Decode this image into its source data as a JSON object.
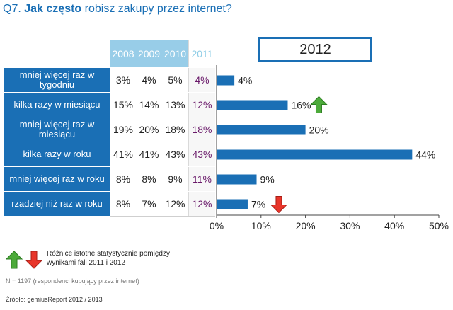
{
  "title": {
    "prefix": "Q7.",
    "bold": "Jak często",
    "rest": "robisz zakupy przez internet?"
  },
  "table": {
    "years": [
      "2008",
      "2009",
      "2010",
      "2011"
    ],
    "rows": [
      {
        "label": "mniej więcej raz w tygodniu",
        "values": [
          "3%",
          "4%",
          "5%",
          "4%"
        ]
      },
      {
        "label": "kilka razy w miesiącu",
        "values": [
          "15%",
          "14%",
          "13%",
          "12%"
        ]
      },
      {
        "label": "mniej więcej raz w miesiącu",
        "values": [
          "19%",
          "20%",
          "18%",
          "18%"
        ]
      },
      {
        "label": "kilka razy w roku",
        "values": [
          "41%",
          "41%",
          "43%",
          "43%"
        ]
      },
      {
        "label": "mniej więcej raz w roku",
        "values": [
          "8%",
          "8%",
          "9%",
          "11%"
        ]
      },
      {
        "label": "rzadziej niż raz w roku",
        "values": [
          "8%",
          "7%",
          "12%",
          "12%"
        ]
      }
    ]
  },
  "chart_data": {
    "type": "bar",
    "orientation": "horizontal",
    "title": "2012",
    "categories": [
      "mniej więcej raz w tygodniu",
      "kilka razy w miesiącu",
      "mniej więcej raz w miesiącu",
      "kilka razy w roku",
      "mniej więcej raz w roku",
      "rzadziej niż raz w roku"
    ],
    "values": [
      4,
      16,
      20,
      44,
      9,
      7
    ],
    "data_labels": [
      "4%",
      "16%",
      "20%",
      "44%",
      "9%",
      "7%"
    ],
    "xlim": [
      0,
      50
    ],
    "x_ticks": [
      "0%",
      "10%",
      "20%",
      "30%",
      "40%",
      "50%"
    ],
    "grid": false,
    "bar_color": "#1a6fb5",
    "significance": [
      null,
      "up",
      null,
      null,
      null,
      "down"
    ]
  },
  "legend": {
    "text": "Różnice istotne statystycznie pomiędzy wynikami fali 2011 i 2012",
    "up_color": "#4caa3a",
    "down_color": "#e8352a"
  },
  "notes": {
    "sample": "N = 1197 (respondenci kupujący przez internet)",
    "source": "Źródło: gemiusReport 2012 / 2013"
  }
}
